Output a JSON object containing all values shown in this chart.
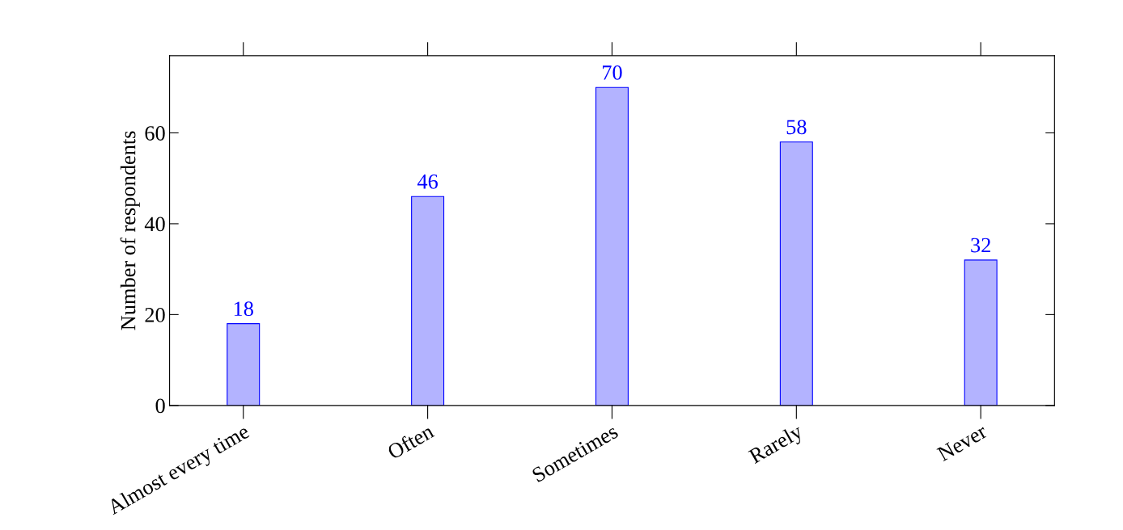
{
  "chart_data": {
    "type": "bar",
    "ylabel": "Number of respondents",
    "categories": [
      "Almost every time",
      "Often",
      "Sometimes",
      "Rarely",
      "Never"
    ],
    "series": [
      {
        "color": "#b3b3ff",
        "values": [
          18,
          46,
          70,
          58,
          32
        ]
      }
    ],
    "ylim": [
      0,
      77
    ],
    "yticks": [
      0,
      20,
      40,
      60
    ],
    "grid": false,
    "data_labels": true,
    "legend": false
  }
}
